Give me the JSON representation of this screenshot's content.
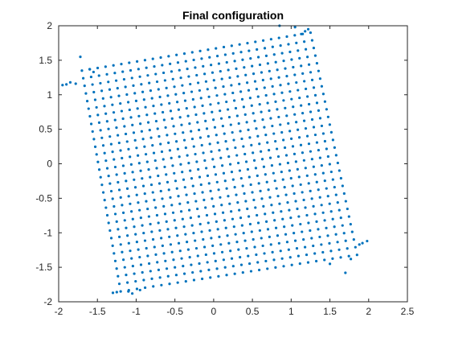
{
  "chart_data": {
    "type": "scatter",
    "title": "Final configuration",
    "xlabel": "",
    "ylabel": "",
    "xlim": [
      -2,
      2.5
    ],
    "ylim": [
      -2,
      2
    ],
    "xticks": [
      "-2",
      "-1.5",
      "-1",
      "-0.5",
      "0",
      "0.5",
      "1",
      "1.5",
      "2",
      "2.5"
    ],
    "yticks": [
      "2",
      "1.5",
      "1",
      "0.5",
      "0",
      "-0.5",
      "-1",
      "-1.5",
      "-2"
    ],
    "grid": false,
    "box": true,
    "marker_color": "#0072BD",
    "lattice": {
      "rows": 30,
      "cols": 30,
      "corner_top_left": [
        -1.7,
        1.35
      ],
      "corner_top_right": [
        1.25,
        1.9
      ],
      "corner_bottom_left": [
        -1.2,
        -1.85
      ],
      "corner_bottom_right": [
        1.85,
        -1.32
      ]
    },
    "stray_points": [
      [
        -1.95,
        1.14
      ],
      [
        -1.9,
        1.15
      ],
      [
        -1.85,
        1.18
      ],
      [
        -1.78,
        1.16
      ],
      [
        -1.72,
        1.55
      ],
      [
        -1.6,
        1.37
      ],
      [
        -1.55,
        1.33
      ],
      [
        1.22,
        1.95
      ],
      [
        1.13,
        1.88
      ],
      [
        1.05,
        1.98
      ],
      [
        1.18,
        1.92
      ],
      [
        0.85,
        2.0
      ],
      [
        1.98,
        -1.12
      ],
      [
        1.92,
        -1.15
      ],
      [
        1.88,
        -1.17
      ],
      [
        1.77,
        -1.38
      ],
      [
        1.7,
        -1.58
      ],
      [
        1.5,
        -1.45
      ],
      [
        -1.3,
        -1.87
      ],
      [
        -1.25,
        -1.86
      ],
      [
        -1.1,
        -1.85
      ],
      [
        -1.05,
        -1.88
      ],
      [
        -0.95,
        -1.83
      ]
    ]
  }
}
